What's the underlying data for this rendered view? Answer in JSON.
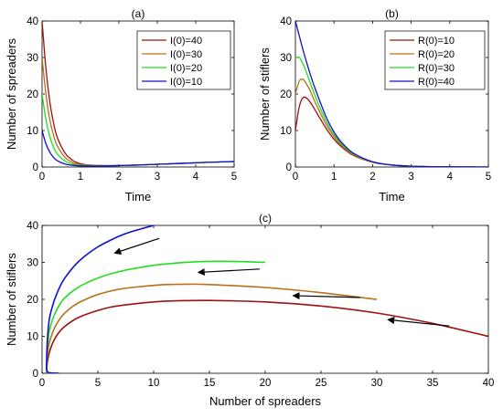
{
  "chart_data": [
    {
      "type": "line",
      "panel_label": "(a)",
      "xlabel": "Time",
      "ylabel": "Number of spreaders",
      "xlim": [
        0,
        5
      ],
      "ylim": [
        0,
        40
      ],
      "xticks": [
        0,
        1,
        2,
        3,
        4,
        5
      ],
      "yticks": [
        0,
        10,
        20,
        30,
        40
      ],
      "legend_position": "top-right",
      "series": [
        {
          "name": "I(0)=40",
          "color": "#a01010",
          "x": [
            0,
            0.1,
            0.2,
            0.3,
            0.4,
            0.6,
            0.8,
            1.0,
            1.2,
            1.5,
            2.0,
            2.5,
            3.0,
            3.5,
            4.0,
            4.5,
            5.0
          ],
          "y": [
            40,
            27,
            18,
            12,
            8,
            3.8,
            1.8,
            0.9,
            0.55,
            0.4,
            0.4,
            0.55,
            0.75,
            0.95,
            1.15,
            1.35,
            1.5
          ]
        },
        {
          "name": "I(0)=30",
          "color": "#b8701a",
          "x": [
            0,
            0.1,
            0.2,
            0.3,
            0.4,
            0.6,
            0.8,
            1.0,
            1.2,
            1.5,
            2.0,
            2.5,
            3.0,
            3.5,
            4.0,
            4.5,
            5.0
          ],
          "y": [
            30,
            20,
            13,
            8.6,
            5.7,
            2.6,
            1.2,
            0.65,
            0.45,
            0.38,
            0.4,
            0.55,
            0.75,
            0.95,
            1.15,
            1.35,
            1.5
          ]
        },
        {
          "name": "I(0)=20",
          "color": "#22dd22",
          "x": [
            0,
            0.1,
            0.2,
            0.3,
            0.4,
            0.6,
            0.8,
            1.0,
            1.2,
            1.5,
            2.0,
            2.5,
            3.0,
            3.5,
            4.0,
            4.5,
            5.0
          ],
          "y": [
            20,
            13,
            8.4,
            5.4,
            3.5,
            1.6,
            0.8,
            0.45,
            0.35,
            0.33,
            0.4,
            0.55,
            0.75,
            0.95,
            1.15,
            1.35,
            1.5
          ]
        },
        {
          "name": "I(0)=10",
          "color": "#1010cc",
          "x": [
            0,
            0.1,
            0.2,
            0.3,
            0.4,
            0.6,
            0.8,
            1.0,
            1.2,
            1.5,
            2.0,
            2.5,
            3.0,
            3.5,
            4.0,
            4.5,
            5.0
          ],
          "y": [
            10,
            6.4,
            4.1,
            2.6,
            1.7,
            0.8,
            0.45,
            0.3,
            0.27,
            0.28,
            0.38,
            0.55,
            0.75,
            0.95,
            1.15,
            1.35,
            1.5
          ]
        }
      ]
    },
    {
      "type": "line",
      "panel_label": "(b)",
      "xlabel": "Time",
      "ylabel": "Number of stiflers",
      "xlim": [
        0,
        5
      ],
      "ylim": [
        0,
        40
      ],
      "xticks": [
        0,
        1,
        2,
        3,
        4,
        5
      ],
      "yticks": [
        0,
        10,
        20,
        30,
        40
      ],
      "legend_position": "top-right",
      "series": [
        {
          "name": "R(0)=10",
          "color": "#a01010",
          "x": [
            0,
            0.1,
            0.2,
            0.3,
            0.4,
            0.5,
            0.6,
            0.8,
            1.0,
            1.2,
            1.5,
            2.0,
            2.5,
            3.0,
            3.5,
            4.0,
            5.0
          ],
          "y": [
            10,
            16.5,
            19,
            18.8,
            17.5,
            15.8,
            14,
            10.5,
            7.6,
            5.5,
            3.2,
            1.3,
            0.55,
            0.22,
            0.1,
            0.04,
            0
          ]
        },
        {
          "name": "R(0)=20",
          "color": "#b8701a",
          "x": [
            0,
            0.1,
            0.2,
            0.3,
            0.4,
            0.5,
            0.6,
            0.8,
            1.0,
            1.2,
            1.5,
            2.0,
            2.5,
            3.0,
            3.5,
            4.0,
            5.0
          ],
          "y": [
            20,
            23.5,
            24,
            22.5,
            20.5,
            18,
            15.8,
            11.6,
            8.3,
            5.9,
            3.4,
            1.35,
            0.55,
            0.22,
            0.1,
            0.04,
            0
          ]
        },
        {
          "name": "R(0)=30",
          "color": "#22dd22",
          "x": [
            0,
            0.1,
            0.2,
            0.3,
            0.4,
            0.5,
            0.6,
            0.8,
            1.0,
            1.2,
            1.5,
            2.0,
            2.5,
            3.0,
            3.5,
            4.0,
            5.0
          ],
          "y": [
            30,
            30,
            28.2,
            25.5,
            22.6,
            19.8,
            17.2,
            12.5,
            8.9,
            6.3,
            3.6,
            1.4,
            0.55,
            0.22,
            0.1,
            0.04,
            0
          ]
        },
        {
          "name": "R(0)=40",
          "color": "#1010cc",
          "x": [
            0,
            0.1,
            0.2,
            0.3,
            0.4,
            0.5,
            0.6,
            0.8,
            1.0,
            1.2,
            1.5,
            2.0,
            2.5,
            3.0,
            3.5,
            4.0,
            5.0
          ],
          "y": [
            40,
            36,
            32,
            28.3,
            24.9,
            21.8,
            19,
            13.6,
            9.6,
            6.7,
            3.8,
            1.45,
            0.55,
            0.22,
            0.1,
            0.04,
            0
          ]
        }
      ]
    },
    {
      "type": "line",
      "panel_label": "(c)",
      "xlabel": "Number of spreaders",
      "ylabel": "Number of stiflers",
      "xlim": [
        0,
        40
      ],
      "ylim": [
        0,
        40
      ],
      "xticks": [
        0,
        5,
        10,
        15,
        20,
        25,
        30,
        35,
        40
      ],
      "yticks": [
        0,
        10,
        20,
        30,
        40
      ],
      "series": [
        {
          "color": "#a01010",
          "x": [
            40,
            35,
            30,
            25,
            20,
            15,
            12,
            10,
            8,
            6,
            4,
            3,
            2,
            1.5,
            1,
            0.6,
            0.4,
            0.5,
            1,
            1.5
          ],
          "y": [
            10,
            13.5,
            16.3,
            18.2,
            19.3,
            19.7,
            19.6,
            19.3,
            18.7,
            17.8,
            16,
            14.7,
            12.6,
            11,
            8.5,
            5,
            1,
            0.2,
            0.05,
            0
          ]
        },
        {
          "color": "#b8701a",
          "x": [
            30,
            25,
            20,
            15,
            13,
            11,
            9,
            7,
            5,
            4,
            3,
            2,
            1.5,
            1,
            0.6,
            0.4,
            0.5,
            1,
            1.5
          ],
          "y": [
            20,
            21.8,
            23.2,
            24,
            24.1,
            24,
            23.5,
            22.8,
            21.3,
            20.1,
            18.6,
            16.2,
            14.3,
            11.5,
            7.5,
            1.5,
            0.3,
            0.05,
            0
          ]
        },
        {
          "color": "#22dd22",
          "x": [
            20,
            18,
            16,
            14,
            12,
            10,
            8,
            6,
            4,
            3,
            2,
            1.5,
            1,
            0.6,
            0.4,
            0.5,
            1,
            1.5
          ],
          "y": [
            30,
            30.2,
            30.3,
            30.2,
            29.8,
            29.2,
            28.2,
            26.8,
            24.5,
            22.8,
            20.3,
            18.2,
            15,
            10.5,
            2,
            0.3,
            0.05,
            0
          ]
        },
        {
          "color": "#1010cc",
          "x": [
            10,
            8,
            7,
            6,
            5,
            4,
            3,
            2,
            1.5,
            1,
            0.6,
            0.4,
            0.5,
            1,
            1.5
          ],
          "y": [
            40,
            38.3,
            37.2,
            35.8,
            34.2,
            32.1,
            29.4,
            25.6,
            22.8,
            18.8,
            13.5,
            3,
            0.4,
            0.05,
            0
          ]
        }
      ],
      "annotations": [
        {
          "type": "arrow",
          "from": [
            10.5,
            36.5
          ],
          "to": [
            6.5,
            32.5
          ]
        },
        {
          "type": "arrow",
          "from": [
            19.5,
            28.2
          ],
          "to": [
            14,
            27.3
          ]
        },
        {
          "type": "arrow",
          "from": [
            28.5,
            20.5
          ],
          "to": [
            22.5,
            21
          ]
        },
        {
          "type": "arrow",
          "from": [
            36.5,
            12.8
          ],
          "to": [
            31,
            14.5
          ]
        }
      ]
    }
  ]
}
